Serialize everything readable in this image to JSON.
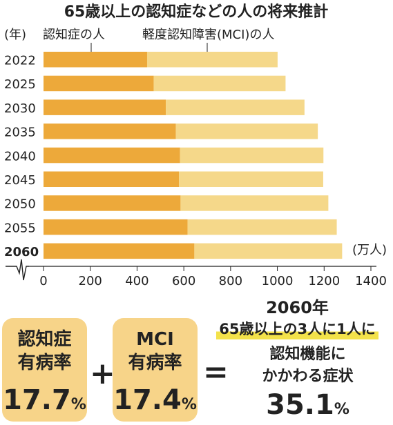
{
  "chart_data": {
    "type": "bar",
    "orientation": "horizontal",
    "stacked": true,
    "title": "65歳以上の認知症などの人の将来推計",
    "y_unit_label": "(年)",
    "x_unit_label": "(万人)",
    "categories": [
      "2022",
      "2025",
      "2030",
      "2035",
      "2040",
      "2045",
      "2050",
      "2055",
      "2060"
    ],
    "series": [
      {
        "name": "認知症の人",
        "color": "#eda93a",
        "values": [
          443,
          471,
          523,
          566,
          584,
          579,
          586,
          616,
          645
        ]
      },
      {
        "name": "軽度認知障害(MCI)の人",
        "color": "#f5d88a",
        "values": [
          558,
          564,
          593,
          607,
          613,
          617,
          632,
          638,
          632
        ]
      }
    ],
    "xlim": [
      0,
      1400
    ],
    "xticks": [
      "0",
      "200",
      "400",
      "600",
      "800",
      "1000",
      "1200",
      "1400"
    ],
    "highlight_category": "2060"
  },
  "summary": {
    "dementia": {
      "label1": "認知症",
      "label2": "有病率",
      "value": "17.7",
      "unit": "%"
    },
    "plus": "+",
    "mci": {
      "label1": "MCI",
      "label2": "有病率",
      "value": "17.4",
      "unit": "%"
    },
    "equals": "=",
    "result": {
      "year": "2060年",
      "ratio": "65歳以上の3人に1人に",
      "line1": "認知機能に",
      "line2": "かかわる症状",
      "value": "35.1",
      "unit": "%"
    }
  }
}
